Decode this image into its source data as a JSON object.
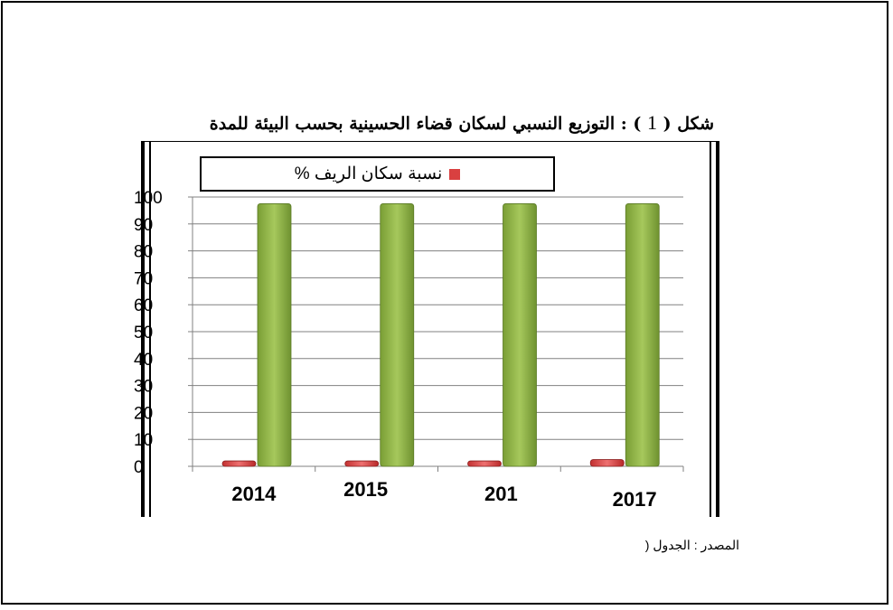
{
  "figure": {
    "title_prefix": "شكل (",
    "figure_number": "1",
    "title_main": ") : التوزيع النسبي لسكان قضاء الحسينية بحسب البيئة للمدة"
  },
  "source_note": "المصدر : الجدول (",
  "chart_data": {
    "type": "bar",
    "title": "",
    "xlabel": "",
    "ylabel": "",
    "categories": [
      "2014",
      "2015",
      "201",
      "2017"
    ],
    "series": [
      {
        "name": "نسبة سكان الريف %",
        "values": [
          2,
          2,
          2,
          2.5
        ],
        "color": "#d94040"
      },
      {
        "values": [
          97.5,
          97.5,
          97.5,
          97.5
        ],
        "color": "#8fb84a"
      }
    ],
    "ylim": [
      0,
      100
    ],
    "yticks": [
      0,
      10,
      20,
      30,
      40,
      50,
      60,
      70,
      80,
      90,
      100
    ],
    "grid": true,
    "legend_position": "top",
    "legend": [
      {
        "label": "نسبة سكان الريف %",
        "color": "#d94040"
      }
    ]
  }
}
